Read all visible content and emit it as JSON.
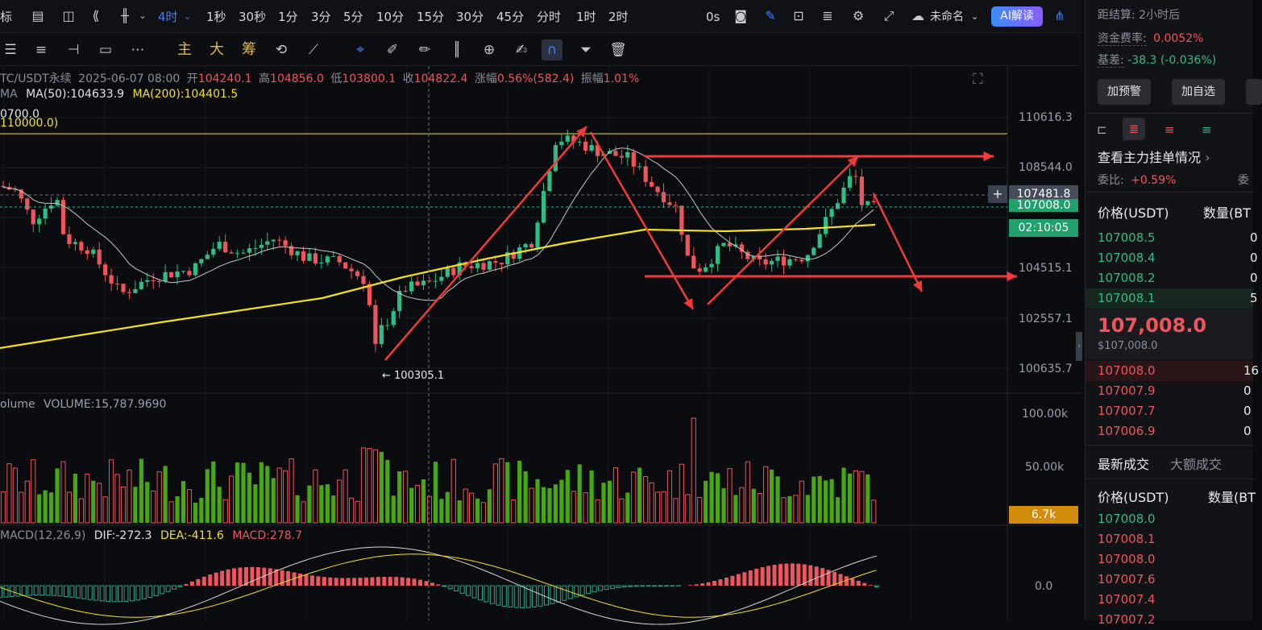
{
  "toolbar": {
    "left_label": "标",
    "interval_active": "4时",
    "intervals": [
      "1秒",
      "30秒",
      "1分",
      "3分",
      "5分",
      "10分",
      "15分",
      "30分",
      "45分",
      "分时",
      "1时",
      "2时"
    ],
    "countdown": "0s",
    "layout_name": "未命名",
    "ai_button": "AI解读"
  },
  "drawing_toolbar": {
    "chars": [
      "主",
      "大",
      "筹"
    ]
  },
  "chart": {
    "symbol_line": "TC/USDT永续",
    "datetime": "2025-06-07 08:00",
    "open_label": "开",
    "open": "104240.1",
    "high_label": "高",
    "high": "104856.0",
    "low_label": "低",
    "low": "103800.1",
    "close_label": "收",
    "close": "104822.4",
    "change_label": "涨幅",
    "change": "0.56%(582.4)",
    "amp_label": "振幅",
    "amp": "1.01%",
    "ma_prefix": "MA",
    "ma50": "MA(50):104633.9",
    "ma200": "MA(200):104401.5",
    "partial_label": "0700.0",
    "line_label": "110000.0)",
    "low_marker": "← 100305.1",
    "price_axis": [
      "110616.3",
      "108544.0",
      "104515.1",
      "102557.1",
      "100635.7"
    ],
    "crosshair_price": "107481.8",
    "current_price": "107008.0",
    "countdown": "02:10:05",
    "volume_title": "olume",
    "volume_value": "VOLUME:15,787.9690",
    "volume_axis": [
      "100.00k",
      "50.00k"
    ],
    "volume_current": "6.7k",
    "macd_title": "MACD(12,26,9)",
    "dif": "DIF:-272.3",
    "dea": "DEA:-411.6",
    "macd": "MACD:278.7",
    "macd_zero": "0.0",
    "colors": {
      "up": "#2ebd85",
      "down": "#f0545c",
      "ma50": "#c8c8c8",
      "ma200": "#f5e11b",
      "arrow": "#f23a3a",
      "accent": "#3f7ef7"
    }
  },
  "right_panel": {
    "settle_label": "距结算:",
    "settle_value": "2小时后",
    "funding_label": "资金费率:",
    "funding_value": "0.0052%",
    "basis_label": "基差:",
    "basis_value": "-38.3 (-0.036%)",
    "btn_alert": "加预警",
    "btn_watch": "加自选",
    "orders_link": "查看主力挂单情况",
    "ratio_label": "委比:",
    "ratio_value": "+0.59%",
    "ratio_extra": "委",
    "col_price": "价格(USDT)",
    "col_qty": "数量(BT",
    "asks": [
      {
        "price": "107008.5",
        "qty": "0"
      },
      {
        "price": "107008.4",
        "qty": "0"
      },
      {
        "price": "107008.2",
        "qty": "0"
      },
      {
        "price": "107008.1",
        "qty": "5"
      }
    ],
    "last_price": "107,008.0",
    "last_price_usd": "$107,008.0",
    "bids": [
      {
        "price": "107008.0",
        "qty": "16"
      },
      {
        "price": "107007.9",
        "qty": "0"
      },
      {
        "price": "107007.7",
        "qty": "0"
      },
      {
        "price": "107006.9",
        "qty": "0"
      }
    ],
    "tab_latest": "最新成交",
    "tab_large": "大额成交",
    "trade_col_price": "价格(USDT)",
    "trade_col_qty": "数量(BT",
    "trades": [
      "107008.0",
      "107008.1",
      "107008.0",
      "107007.6",
      "107007.4",
      "107007.2"
    ]
  }
}
